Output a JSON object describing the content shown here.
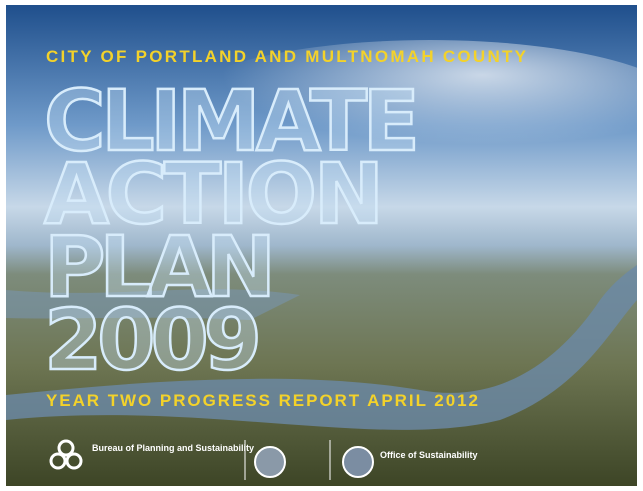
{
  "cover": {
    "overline": "CITY OF PORTLAND AND MULTNOMAH COUNTY",
    "title_lines": [
      "CLIMATE",
      "ACTION",
      "PLAN",
      "2009"
    ],
    "subtitle": "YEAR TWO PROGRESS REPORT APRIL 2012",
    "logos": {
      "bureau": "Bureau of Planning and Sustainability",
      "office": "Office of Sustainability"
    }
  }
}
